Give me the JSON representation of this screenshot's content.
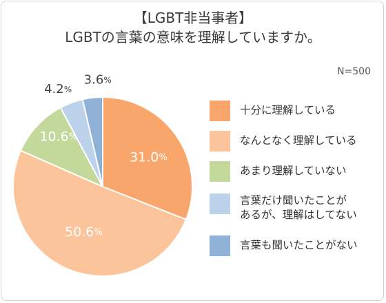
{
  "title": {
    "line1": "【LGBT非当事者】",
    "line2": "LGBTの言葉の意味を理解していますか。"
  },
  "note": "N=500",
  "chart_data": {
    "type": "pie",
    "unit": "%",
    "slices": [
      {
        "label": "十分に理解している",
        "value": 31.0,
        "display": "31.0",
        "color": "#f9a66c",
        "label_color": "#ffffff"
      },
      {
        "label": "なんとなく理解している",
        "value": 50.6,
        "display": "50.6",
        "color": "#fcc49b",
        "label_color": "#ffffff"
      },
      {
        "label": "あまり理解していない",
        "value": 10.6,
        "display": "10.6",
        "color": "#c3d99b",
        "label_color": "#ffffff"
      },
      {
        "label": "言葉だけ聞いたことが\nあるが、理解はしてない",
        "value": 4.2,
        "display": "4.2",
        "color": "#bcd1ea",
        "label_color": "#444444"
      },
      {
        "label": "言葉も聞いたことがない",
        "value": 3.6,
        "display": "3.6",
        "color": "#8fb1d8",
        "label_color": "#444444"
      }
    ],
    "legend_position": "right",
    "start_angle": "12 o'clock",
    "direction": "clockwise"
  }
}
